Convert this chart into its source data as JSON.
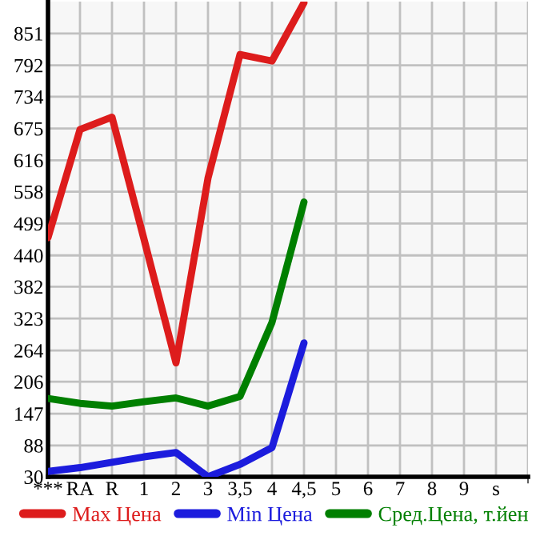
{
  "chart_data": {
    "type": "line",
    "categories": [
      "***",
      "RA",
      "R",
      "1",
      "2",
      "3",
      "3,5",
      "4",
      "4,5",
      "5",
      "6",
      "7",
      "8",
      "9",
      "s"
    ],
    "series": [
      {
        "name": "Max Цена",
        "color": "#dd1c1c",
        "values": [
          473,
          673,
          696,
          470,
          241,
          583,
          812,
          800,
          908,
          null,
          null,
          null,
          null,
          null,
          null
        ]
      },
      {
        "name": "Min Цена",
        "color": "#1c1cdd",
        "values": [
          40,
          47,
          57,
          67,
          75,
          30,
          53,
          84,
          278,
          null,
          null,
          null,
          null,
          null,
          null
        ]
      },
      {
        "name": "Сред.Цена, т.йен",
        "color": "#007f00",
        "values": [
          175,
          166,
          161,
          169,
          176,
          161,
          179,
          316,
          539,
          null,
          null,
          null,
          null,
          null,
          null
        ]
      }
    ],
    "ylim": [
      30,
      910
    ],
    "yticks": [
      30,
      88,
      147,
      206,
      264,
      323,
      382,
      440,
      499,
      558,
      616,
      675,
      734,
      792,
      851
    ],
    "grid": true,
    "legend": "bottom",
    "marker": "none",
    "line_style": "solid"
  }
}
